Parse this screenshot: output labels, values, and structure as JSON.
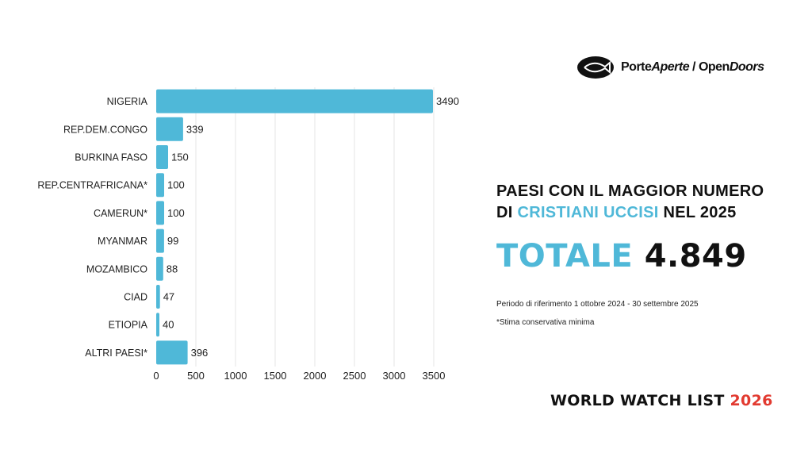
{
  "logo": {
    "part1": "Porte",
    "part2": "Aperte",
    "sep": " / ",
    "part3": "Open",
    "part4": "Doors"
  },
  "title": {
    "line1": "PAESI CON IL MAGGIOR NUMERO",
    "line2_pre": "DI ",
    "line2_accent": "CRISTIANI UCCISI",
    "line2_post": " NEL 2025"
  },
  "total": {
    "label": "TOTALE",
    "value": "4.849"
  },
  "period": "Periodo di riferimento 1 ottobre 2024 - 30 settembre 2025",
  "note": "*Stima conservativa minima",
  "footer": {
    "text": "WORLD WATCH LIST ",
    "year": "2026"
  },
  "colors": {
    "bar": "#4fb8d8",
    "accent": "#4fb8d8",
    "year": "#e23a30",
    "grid": "#e6e6e6"
  },
  "chart_data": {
    "type": "bar",
    "orientation": "horizontal",
    "categories": [
      "NIGERIA",
      "REP.DEM.CONGO",
      "BURKINA FASO",
      "REP.CENTRAFRICANA*",
      "CAMERUN*",
      "MYANMAR",
      "MOZAMBICO",
      "CIAD",
      "ETIOPIA",
      "ALTRI PAESI*"
    ],
    "values": [
      3490,
      339,
      150,
      100,
      100,
      99,
      88,
      47,
      40,
      396
    ],
    "xlim": [
      0,
      3500
    ],
    "xticks": [
      0,
      500,
      1000,
      1500,
      2000,
      2500,
      3000,
      3500
    ],
    "grid": true,
    "data_labels": true
  }
}
